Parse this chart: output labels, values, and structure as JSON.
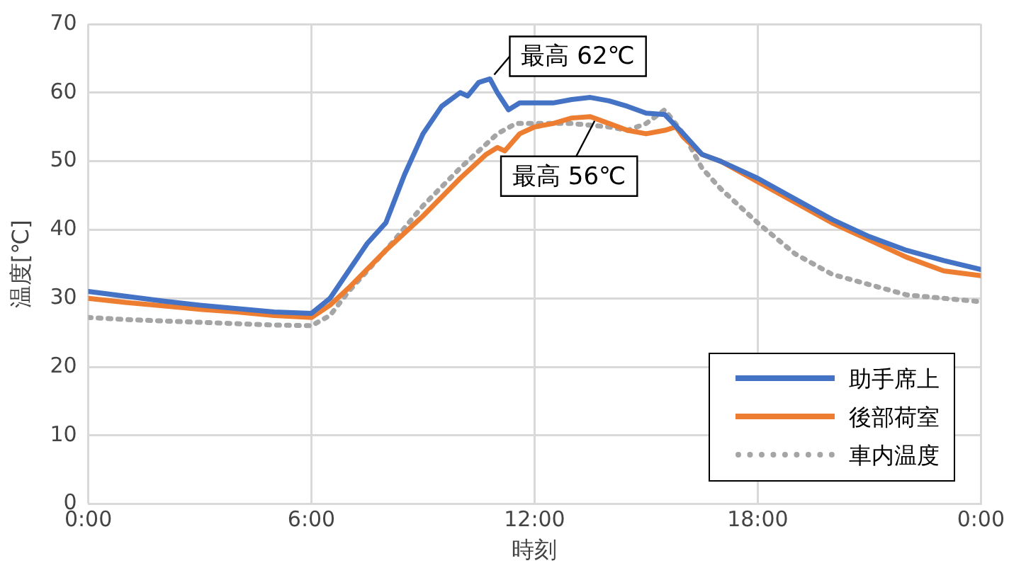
{
  "chart_data": {
    "type": "line",
    "xlabel": "時刻",
    "ylabel": "温度[℃]",
    "xlim": [
      0,
      24
    ],
    "xticks": [
      {
        "value": 0,
        "label": "0:00"
      },
      {
        "value": 6,
        "label": "6:00"
      },
      {
        "value": 12,
        "label": "12:00"
      },
      {
        "value": 18,
        "label": "18:00"
      },
      {
        "value": 24,
        "label": "0:00"
      }
    ],
    "ylim": [
      0,
      70
    ],
    "yticks": [
      0,
      10,
      20,
      30,
      40,
      50,
      60,
      70
    ],
    "grid": true,
    "legend": "bottom right",
    "marker": "none",
    "annotations": [
      {
        "text": "最高 62℃",
        "x": 10.8,
        "y": 62
      },
      {
        "text": "最高 56℃",
        "x": 13.5,
        "y": 56.5
      }
    ],
    "series": [
      {
        "name": "助手席上",
        "color": "#4472c4",
        "line_style": "solid",
        "x": [
          0,
          1,
          2,
          3,
          4,
          5,
          6,
          6.5,
          7,
          7.5,
          8,
          8.5,
          9,
          9.5,
          10,
          10.2,
          10.5,
          10.8,
          11,
          11.3,
          11.6,
          12,
          12.5,
          13,
          13.5,
          14,
          14.5,
          15,
          15.5,
          16,
          16.5,
          17,
          18,
          19,
          20,
          21,
          22,
          23,
          24
        ],
        "values": [
          31,
          30.3,
          29.6,
          29,
          28.5,
          28,
          27.8,
          30,
          34,
          38,
          41,
          48,
          54,
          58,
          60,
          59.5,
          61.5,
          62,
          60,
          57.5,
          58.5,
          58.5,
          58.5,
          59,
          59.3,
          58.8,
          58,
          57,
          56.8,
          54,
          51,
          50,
          47.5,
          44.5,
          41.5,
          39,
          37,
          35.5,
          34.2
        ]
      },
      {
        "name": "後部荷室",
        "color": "#ed7d31",
        "line_style": "solid",
        "x": [
          0,
          1,
          2,
          3,
          4,
          5,
          6,
          6.5,
          7,
          8,
          9,
          10,
          10.7,
          11,
          11.2,
          11.6,
          12,
          12.5,
          13,
          13.5,
          14,
          14.5,
          15,
          15.5,
          15.8,
          16,
          16.5,
          17,
          18,
          19,
          20,
          21,
          22,
          23,
          24
        ],
        "values": [
          30,
          29.4,
          28.9,
          28.4,
          28,
          27.5,
          27.2,
          29,
          31.5,
          37,
          42,
          47.5,
          51,
          52,
          51.5,
          54,
          55,
          55.5,
          56.3,
          56.5,
          55.5,
          54.5,
          54,
          54.5,
          55,
          53.5,
          51,
          50,
          47,
          44,
          41,
          38.5,
          36,
          34,
          33.3
        ]
      },
      {
        "name": "車内温度",
        "color": "#a5a5a5",
        "line_style": "dotted",
        "x": [
          0,
          1,
          2,
          3,
          4,
          5,
          6,
          6.5,
          7,
          8,
          9,
          10,
          11,
          11.5,
          12,
          13,
          14,
          14.5,
          15,
          15.5,
          16,
          16.5,
          17,
          18,
          19,
          20,
          21,
          22,
          23,
          24
        ],
        "values": [
          27.2,
          26.9,
          26.7,
          26.5,
          26.3,
          26.1,
          26,
          27.5,
          31,
          37,
          43.5,
          49,
          54,
          55.5,
          55.5,
          55.5,
          55,
          54.5,
          55.5,
          57.5,
          54,
          49,
          46,
          41,
          36.5,
          33.5,
          32,
          30.5,
          30,
          29.5
        ]
      }
    ]
  }
}
